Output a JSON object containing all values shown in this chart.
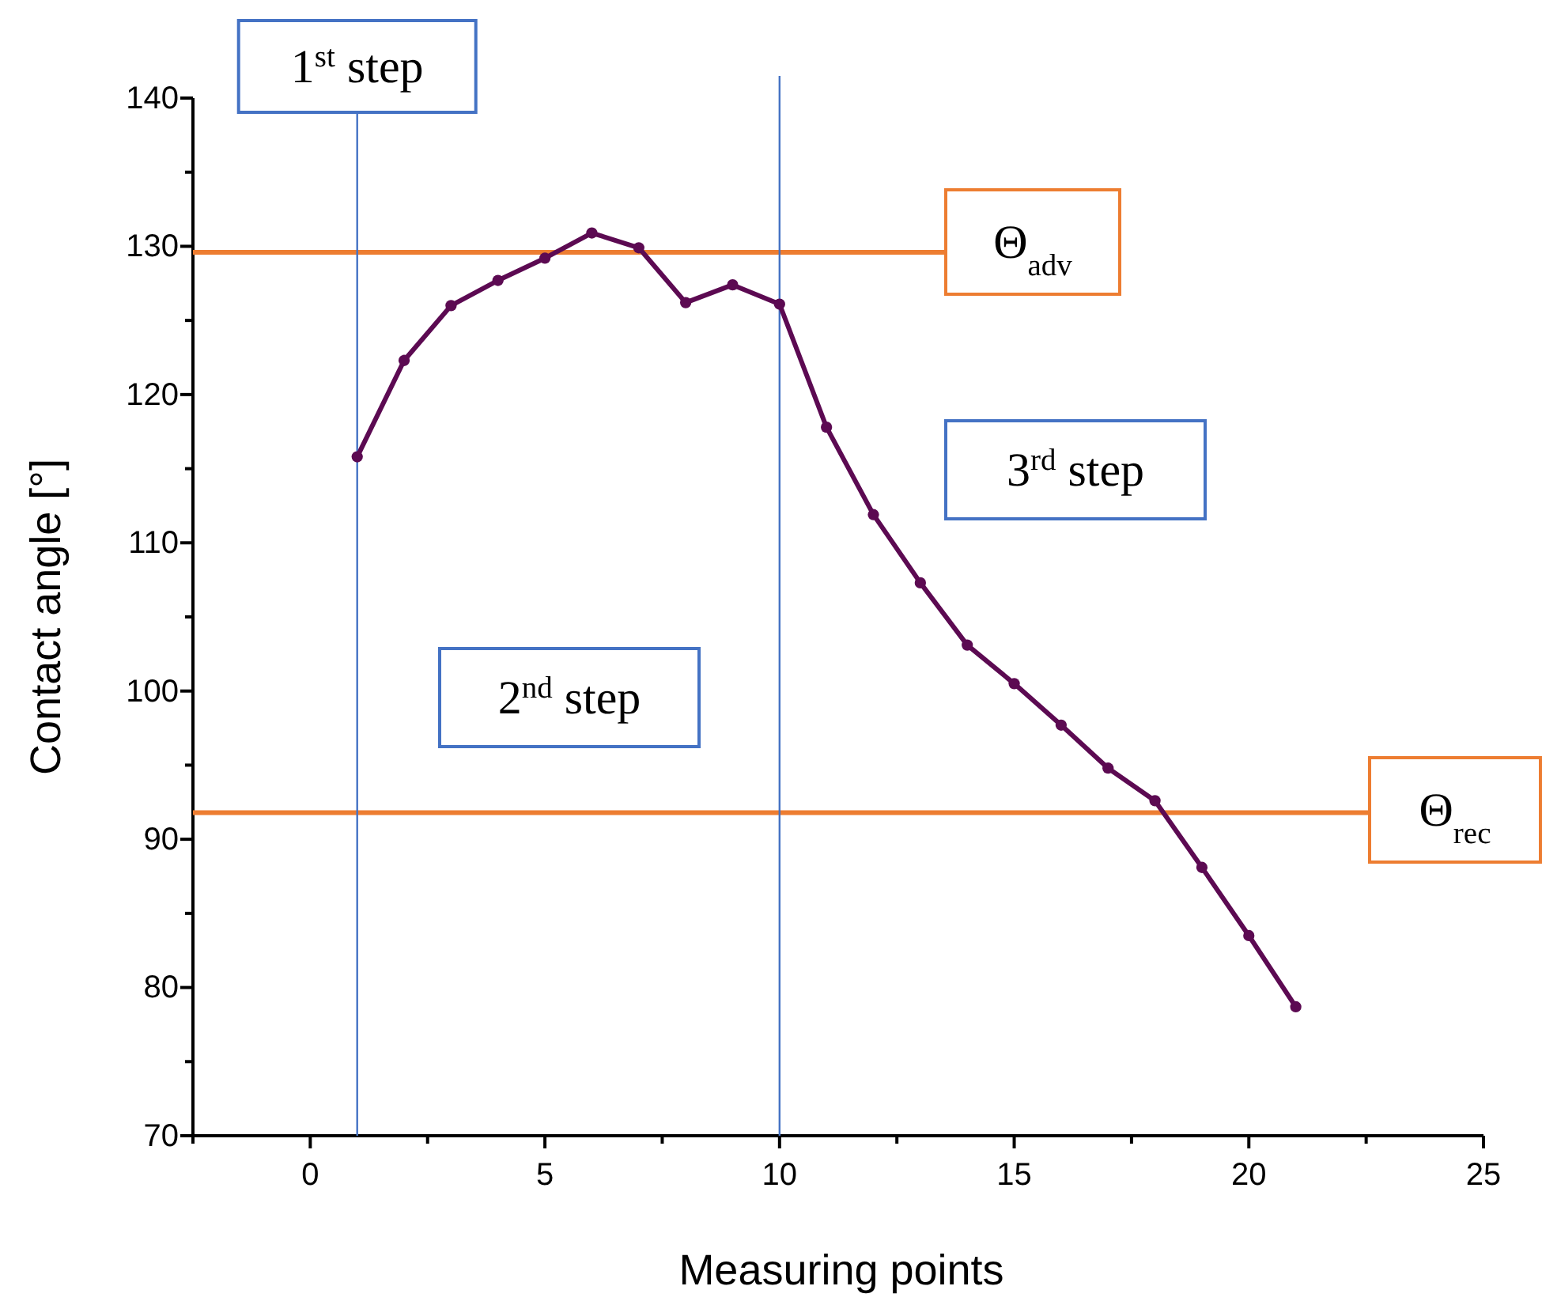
{
  "chart_data": {
    "type": "line",
    "xlabel": "Measuring points",
    "ylabel": "Contact angle [°]",
    "x": [
      1,
      2,
      3,
      4,
      5,
      6,
      7,
      8,
      9,
      10,
      11,
      12,
      13,
      14,
      15,
      16,
      17,
      18,
      19,
      20,
      21
    ],
    "series": [
      {
        "color": "#5c0a52",
        "values": [
          115.8,
          122.3,
          126.0,
          127.7,
          129.2,
          130.9,
          129.9,
          126.2,
          127.4,
          126.1,
          117.8,
          111.9,
          107.3,
          103.1,
          100.5,
          97.7,
          94.8,
          92.6,
          88.1,
          83.5,
          78.7
        ]
      }
    ],
    "xlim": [
      -2.5,
      25
    ],
    "xticks": [
      {
        "value": -2.5,
        "label": null
      },
      0,
      {
        "value": 2.5,
        "label": null
      },
      5,
      {
        "value": 7.5,
        "label": null
      },
      10,
      {
        "value": 12.5,
        "label": null
      },
      15,
      {
        "value": 17.5,
        "label": null
      },
      20,
      {
        "value": 22.5,
        "label": null
      },
      25
    ],
    "ylim": [
      70,
      140
    ],
    "yticks": [
      70,
      {
        "value": 75,
        "label": null
      },
      80,
      {
        "value": 85,
        "label": null
      },
      90,
      {
        "value": 95,
        "label": null
      },
      100,
      {
        "value": 105,
        "label": null
      },
      110,
      {
        "value": 115,
        "label": null
      },
      120,
      {
        "value": 125,
        "label": null
      },
      130,
      {
        "value": 135,
        "label": null
      },
      140
    ],
    "marker": "circle",
    "line_style": "solid",
    "grid": false,
    "ref_lines": [
      {
        "axis": "y",
        "value": 129.6,
        "label": "Θ$_{adv}$",
        "color": "#ed7d31"
      },
      {
        "axis": "y",
        "value": 91.8,
        "label": "Θ$_{rec}$",
        "color": "#ed7d31"
      },
      {
        "axis": "x",
        "value": 1,
        "label": "1$^{st}$ step",
        "color": "#4472c4"
      },
      {
        "axis": "x",
        "value": 10,
        "color": "#4472c4"
      }
    ],
    "annotations": [
      "2$^{nd}$ step",
      "3$^{rd}$ step"
    ]
  }
}
